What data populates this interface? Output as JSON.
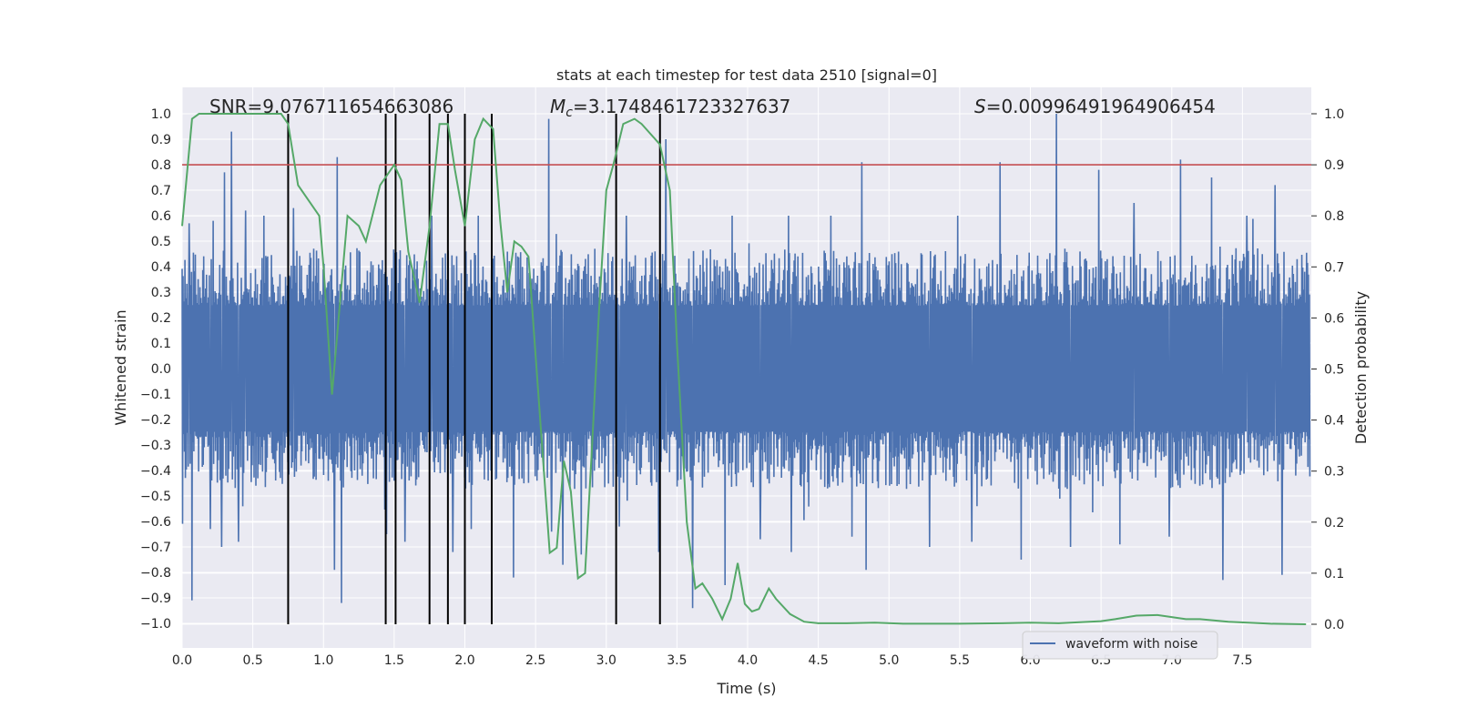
{
  "chart_data": {
    "type": "line",
    "title": "stats at each timestep for test data 2510 [signal=0]",
    "xlabel": "Time (s)",
    "ylabel": "Whitened strain",
    "y2label": "Detection probability",
    "xlim": [
      0,
      8
    ],
    "ylim": [
      -1.05,
      1.05
    ],
    "y2lim": [
      -0.05,
      1.05
    ],
    "x_ticks": [
      0.0,
      0.5,
      1.0,
      1.5,
      2.0,
      2.5,
      3.0,
      3.5,
      4.0,
      4.5,
      5.0,
      5.5,
      6.0,
      6.5,
      7.0,
      7.5
    ],
    "x_tick_labels": [
      "0.0",
      "0.5",
      "1.0",
      "1.5",
      "2.0",
      "2.5",
      "3.0",
      "3.5",
      "4.0",
      "4.5",
      "5.0",
      "5.5",
      "6.0",
      "6.5",
      "7.0",
      "7.5"
    ],
    "y_ticks": [
      1.0,
      0.9,
      0.8,
      0.7,
      0.6,
      0.5,
      0.4,
      0.3,
      0.2,
      0.1,
      0.0,
      -0.1,
      -0.2,
      -0.3,
      -0.4,
      -0.5,
      -0.6,
      -0.7,
      -0.8,
      -0.9,
      -1.0
    ],
    "y_tick_labels": [
      "1.0",
      "0.9",
      "0.8",
      "0.7",
      "0.6",
      "0.5",
      "0.4",
      "0.3",
      "0.2",
      "0.1",
      "0.0",
      "−0.1",
      "−0.2",
      "−0.3",
      "−0.4",
      "−0.5",
      "−0.6",
      "−0.7",
      "−0.8",
      "−0.9",
      "−1.0"
    ],
    "y2_ticks": [
      1.0,
      0.9,
      0.8,
      0.7,
      0.6,
      0.5,
      0.4,
      0.3,
      0.2,
      0.1,
      0.0
    ],
    "y2_tick_labels": [
      "1.0",
      "0.9",
      "0.8",
      "0.7",
      "0.6",
      "0.5",
      "0.4",
      "0.3",
      "0.2",
      "0.1",
      "0.0"
    ],
    "annotations": {
      "snr": "SNR=9.076711654663086",
      "mc_symbol": "M",
      "mc_sub": "c",
      "mc_value": "=3.1748461723327637",
      "s_symbol": "S",
      "s_value": "=0.00996491964906454"
    },
    "threshold": {
      "axis": "y2",
      "value": 0.9,
      "color": "#c44e52"
    },
    "vlines_x": [
      0.75,
      1.44,
      1.51,
      1.75,
      1.88,
      2.0,
      2.19,
      3.07,
      3.38
    ],
    "vline_range_y2": [
      0.0,
      1.0
    ],
    "waveform": {
      "name": "waveform with noise",
      "color": "#4c72b0",
      "envelope_typical": 0.45,
      "spikes_up": [
        [
          0.05,
          0.57
        ],
        [
          0.22,
          0.58
        ],
        [
          0.3,
          0.77
        ],
        [
          0.35,
          0.93
        ],
        [
          0.45,
          0.62
        ],
        [
          0.58,
          0.6
        ],
        [
          0.79,
          0.63
        ],
        [
          1.1,
          0.83
        ],
        [
          1.45,
          0.6
        ],
        [
          1.77,
          0.6
        ],
        [
          2.1,
          0.6
        ],
        [
          2.6,
          0.98
        ],
        [
          3.15,
          0.6
        ],
        [
          3.43,
          0.9
        ],
        [
          3.9,
          0.6
        ],
        [
          4.3,
          0.6
        ],
        [
          4.6,
          0.6
        ],
        [
          4.82,
          0.81
        ],
        [
          5.3,
          0.81
        ],
        [
          5.5,
          0.6
        ],
        [
          5.8,
          0.81
        ],
        [
          5.95,
          0.82
        ],
        [
          6.2,
          1.0
        ],
        [
          6.5,
          0.78
        ],
        [
          6.75,
          0.65
        ],
        [
          7.08,
          0.82
        ],
        [
          7.3,
          0.75
        ],
        [
          7.55,
          0.6
        ],
        [
          7.75,
          0.72
        ]
      ],
      "spikes_down": [
        [
          0.07,
          -0.91
        ],
        [
          0.2,
          -0.63
        ],
        [
          0.28,
          -0.7
        ],
        [
          0.4,
          -0.68
        ],
        [
          1.08,
          -0.79
        ],
        [
          1.13,
          -0.92
        ],
        [
          1.45,
          -0.65
        ],
        [
          1.58,
          -0.68
        ],
        [
          1.92,
          -0.72
        ],
        [
          2.05,
          -0.63
        ],
        [
          2.35,
          -0.82
        ],
        [
          2.62,
          -0.64
        ],
        [
          2.7,
          -0.77
        ],
        [
          2.83,
          -0.73
        ],
        [
          3.1,
          -0.62
        ],
        [
          3.38,
          -0.72
        ],
        [
          3.62,
          -0.94
        ],
        [
          3.85,
          -0.85
        ],
        [
          4.1,
          -0.67
        ],
        [
          4.32,
          -0.72
        ],
        [
          4.75,
          -0.66
        ],
        [
          4.85,
          -0.79
        ],
        [
          5.3,
          -0.7
        ],
        [
          5.6,
          -0.68
        ],
        [
          5.95,
          -0.75
        ],
        [
          6.3,
          -0.7
        ],
        [
          6.65,
          -0.69
        ],
        [
          7.0,
          -0.66
        ],
        [
          7.38,
          -0.83
        ],
        [
          7.8,
          -0.81
        ]
      ]
    },
    "detection": {
      "name": "detection probability",
      "color": "#55a868",
      "x": [
        0.0,
        0.07,
        0.12,
        0.2,
        0.5,
        0.7,
        0.75,
        0.82,
        0.97,
        1.0,
        1.06,
        1.17,
        1.25,
        1.3,
        1.4,
        1.5,
        1.55,
        1.6,
        1.68,
        1.75,
        1.82,
        1.88,
        1.93,
        2.0,
        2.07,
        2.13,
        2.2,
        2.25,
        2.3,
        2.35,
        2.4,
        2.45,
        2.6,
        2.65,
        2.7,
        2.75,
        2.8,
        2.85,
        2.9,
        2.95,
        3.0,
        3.05,
        3.12,
        3.2,
        3.25,
        3.38,
        3.45,
        3.5,
        3.57,
        3.63,
        3.68,
        3.75,
        3.82,
        3.88,
        3.93,
        3.98,
        4.03,
        4.08,
        4.15,
        4.2,
        4.3,
        4.4,
        4.5,
        4.7,
        4.9,
        5.1,
        5.5,
        5.8,
        6.0,
        6.2,
        6.5,
        6.6,
        6.75,
        6.9,
        7.1,
        7.2,
        7.4,
        7.7,
        7.95
      ],
      "y": [
        0.78,
        0.99,
        1.0,
        1.0,
        1.0,
        1.0,
        0.98,
        0.86,
        0.8,
        0.7,
        0.45,
        0.8,
        0.78,
        0.75,
        0.86,
        0.9,
        0.87,
        0.73,
        0.63,
        0.78,
        0.98,
        0.98,
        0.89,
        0.78,
        0.95,
        0.99,
        0.97,
        0.79,
        0.65,
        0.75,
        0.74,
        0.72,
        0.14,
        0.15,
        0.32,
        0.26,
        0.09,
        0.1,
        0.35,
        0.62,
        0.85,
        0.9,
        0.98,
        0.99,
        0.98,
        0.94,
        0.85,
        0.55,
        0.2,
        0.07,
        0.08,
        0.05,
        0.01,
        0.05,
        0.12,
        0.04,
        0.025,
        0.03,
        0.07,
        0.05,
        0.02,
        0.005,
        0.002,
        0.002,
        0.003,
        0.001,
        0.001,
        0.002,
        0.003,
        0.002,
        0.006,
        0.01,
        0.017,
        0.018,
        0.01,
        0.01,
        0.005,
        0.001,
        0.0
      ]
    },
    "legend": {
      "placement": "lower-center-right",
      "label": "waveform with noise"
    }
  }
}
